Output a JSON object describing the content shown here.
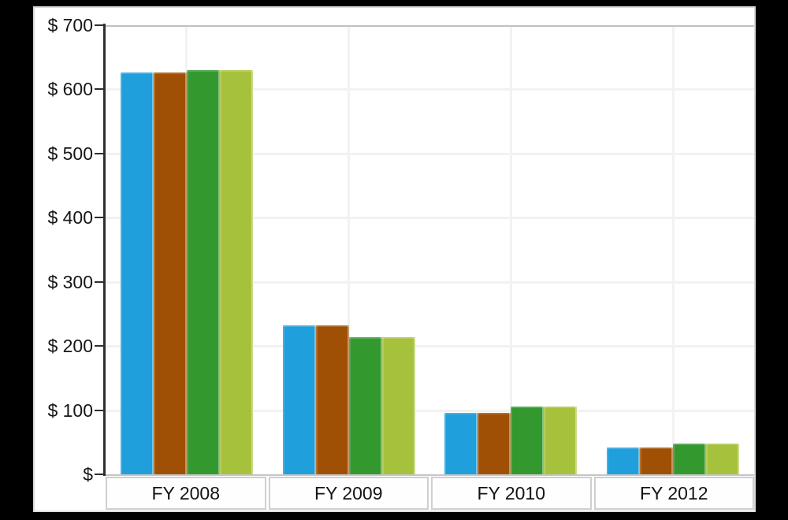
{
  "frame": {
    "background": "#000000"
  },
  "panel": {
    "background": "#ffffff",
    "border_color": "#dadada"
  },
  "chart_data": {
    "type": "bar",
    "title": "",
    "xlabel": "",
    "ylabel": "",
    "legend": "none",
    "categories": [
      "FY 2008",
      "FY 2009",
      "FY 2010",
      "FY 2012"
    ],
    "series": [
      {
        "name": "blue",
        "color": "#1F9FDB",
        "values": [
          626,
          232,
          96,
          42
        ]
      },
      {
        "name": "brown",
        "color": "#A05004",
        "values": [
          626,
          232,
          96,
          42
        ]
      },
      {
        "name": "green",
        "color": "#33992F",
        "values": [
          630,
          214,
          106,
          48
        ]
      },
      {
        "name": "yellow-green",
        "color": "#A6C23C",
        "values": [
          630,
          214,
          106,
          48
        ]
      }
    ],
    "ylim": [
      0,
      700
    ],
    "y_tick_step": 100,
    "y_tick_labels_top_to_bottom": [
      "$ 700",
      "$ 600",
      "$ 500",
      "$ 400",
      "$ 300",
      "$ 200",
      "$ 100",
      "$"
    ],
    "grid": {
      "horizontal": true,
      "vertical_at_category_centers": true
    }
  },
  "style_colors": {
    "axis_line": "#2e2e2e",
    "tick": "#2e2e2e",
    "gridline": "#f2f2f2",
    "plot_top_border": "#c0c0c0",
    "plot_bottom_border": "#c5c5c5",
    "category_box_border": "#cfcfcf",
    "label_text": "#161616"
  }
}
